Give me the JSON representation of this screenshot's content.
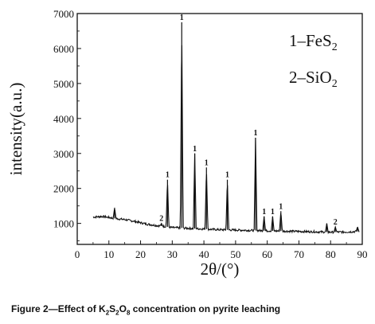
{
  "chart_data": {
    "type": "line",
    "xlabel": "2θ/(°)",
    "ylabel": "intensity(a.u.)",
    "xlim": [
      0,
      90
    ],
    "ylim": [
      400,
      7000
    ],
    "xticks": [
      0,
      10,
      20,
      30,
      40,
      50,
      60,
      70,
      80,
      90
    ],
    "yticks": [
      1000,
      2000,
      3000,
      4000,
      5000,
      6000,
      7000
    ],
    "grid": false,
    "legend": {
      "placement": "top-right",
      "entries": [
        {
          "id": "1",
          "text": "1–FeS",
          "sub": "2"
        },
        {
          "id": "2",
          "text": "2–SiO",
          "sub": "2"
        }
      ]
    },
    "background": [
      [
        5,
        1180
      ],
      [
        8,
        1200
      ],
      [
        10,
        1170
      ],
      [
        12,
        1140
      ],
      [
        15,
        1110
      ],
      [
        18,
        1060
      ],
      [
        20,
        1020
      ],
      [
        22,
        980
      ],
      [
        25,
        940
      ],
      [
        28,
        910
      ],
      [
        30,
        880
      ],
      [
        35,
        860
      ],
      [
        40,
        840
      ],
      [
        45,
        820
      ],
      [
        50,
        810
      ],
      [
        55,
        800
      ],
      [
        60,
        790
      ],
      [
        65,
        780
      ],
      [
        70,
        770
      ],
      [
        75,
        760
      ],
      [
        80,
        750
      ],
      [
        85,
        755
      ],
      [
        89,
        770
      ]
    ],
    "peaks": [
      {
        "x": 11.8,
        "y": 1450,
        "label": ""
      },
      {
        "x": 26.6,
        "y": 1000,
        "label": "2"
      },
      {
        "x": 28.5,
        "y": 2250,
        "label": "1"
      },
      {
        "x": 33.0,
        "y": 6750,
        "label": "1"
      },
      {
        "x": 37.1,
        "y": 3000,
        "label": "1"
      },
      {
        "x": 40.8,
        "y": 2600,
        "label": "1"
      },
      {
        "x": 47.4,
        "y": 2250,
        "label": "1"
      },
      {
        "x": 56.3,
        "y": 3450,
        "label": "1"
      },
      {
        "x": 59.0,
        "y": 1200,
        "label": "1"
      },
      {
        "x": 61.7,
        "y": 1200,
        "label": "1"
      },
      {
        "x": 64.3,
        "y": 1350,
        "label": "1"
      },
      {
        "x": 78.8,
        "y": 1000,
        "label": ""
      },
      {
        "x": 81.5,
        "y": 900,
        "label": "2"
      },
      {
        "x": 88.5,
        "y": 900,
        "label": ""
      }
    ]
  },
  "caption": {
    "prefix": "Figure 2",
    "dash": "—",
    "text_before": "Effect of K",
    "sub1": "2",
    "s": "S",
    "sub2": "2",
    "o": "O",
    "sub3": "8",
    "text_after": " concentration on pyrite leaching"
  }
}
